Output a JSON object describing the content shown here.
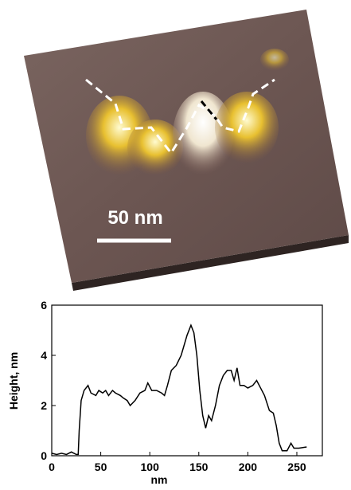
{
  "image": {
    "scale_bar": "50 nm"
  },
  "chart_data": {
    "type": "line",
    "xlabel": "nm",
    "ylabel": "Height, nm",
    "x": [
      0,
      5,
      10,
      15,
      20,
      25,
      27,
      28,
      30,
      33,
      37,
      40,
      45,
      48,
      52,
      55,
      58,
      62,
      65,
      70,
      73,
      77,
      80,
      85,
      90,
      95,
      98,
      102,
      107,
      112,
      115,
      118,
      122,
      127,
      132,
      138,
      142,
      145,
      148,
      151,
      154,
      157,
      160,
      163,
      167,
      171,
      175,
      179,
      183,
      186,
      189,
      192,
      196,
      200,
      205,
      209,
      213,
      217,
      222,
      226,
      229,
      232,
      235,
      240,
      244,
      247,
      252,
      260
    ],
    "values": [
      0.1,
      0.05,
      0.1,
      0.05,
      0.15,
      0.05,
      0.05,
      1.0,
      2.2,
      2.6,
      2.8,
      2.5,
      2.4,
      2.6,
      2.5,
      2.6,
      2.4,
      2.6,
      2.5,
      2.4,
      2.3,
      2.2,
      2.0,
      2.2,
      2.5,
      2.6,
      2.9,
      2.6,
      2.6,
      2.5,
      2.4,
      2.8,
      3.4,
      3.6,
      4.0,
      4.8,
      5.2,
      4.9,
      4.0,
      2.6,
      1.6,
      1.1,
      1.6,
      1.4,
      2.0,
      2.8,
      3.2,
      3.4,
      3.4,
      3.0,
      3.5,
      2.8,
      2.8,
      2.7,
      2.8,
      3.0,
      2.7,
      2.4,
      1.8,
      1.7,
      1.2,
      0.5,
      0.2,
      0.2,
      0.5,
      0.3,
      0.3,
      0.35
    ],
    "color": "#000000",
    "xlim": [
      0,
      276
    ],
    "xticks": [
      0,
      50,
      100,
      150,
      200,
      250
    ],
    "ylim": [
      0,
      6
    ],
    "yticks": [
      0,
      2,
      4,
      6
    ],
    "grid": false
  }
}
